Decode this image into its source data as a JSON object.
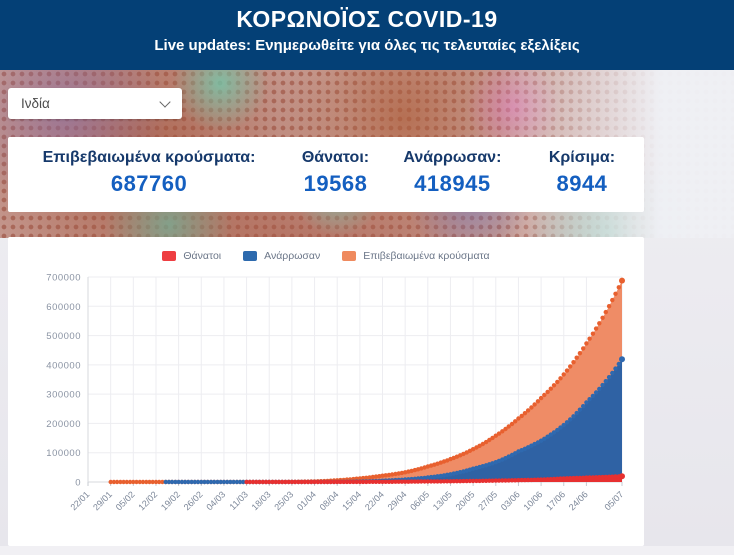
{
  "header": {
    "title": "ΚΟΡΩΝΟΪΟΣ COVID-19",
    "subtitle": "Live updates: Ενημερωθείτε για όλες τις τελευταίες εξελίξεις"
  },
  "country_select": {
    "value": "Ινδία"
  },
  "stats": {
    "items": [
      {
        "label": "Επιβεβαιωμένα κρούσματα:",
        "value": "687760"
      },
      {
        "label": "Θάνατοι:",
        "value": "19568"
      },
      {
        "label": "Ανάρρωσαν:",
        "value": "418945"
      },
      {
        "label": "Κρίσιμα:",
        "value": "8944"
      }
    ]
  },
  "brand": {
    "header_bg": "#044076",
    "stat_value_blue": "#145fc0"
  },
  "chart_data": {
    "type": "area",
    "title": "",
    "xlabel": "",
    "ylabel": "",
    "ylim": [
      0,
      700000
    ],
    "y_ticks": [
      0,
      100000,
      200000,
      300000,
      400000,
      500000,
      600000,
      700000
    ],
    "grid": true,
    "legend_position": "top",
    "x_tick_labels": [
      "22/01",
      "29/01",
      "05/02",
      "12/02",
      "19/02",
      "26/02",
      "04/03",
      "11/03",
      "18/03",
      "25/03",
      "01/04",
      "08/04",
      "15/04",
      "22/04",
      "29/04",
      "06/05",
      "13/05",
      "20/05",
      "27/05",
      "03/06",
      "10/06",
      "17/06",
      "24/06",
      "05/07"
    ],
    "series": [
      {
        "key": "deaths",
        "name": "Θάνατοι",
        "legend_color": "#ee3e42",
        "dot_color": "#e73030",
        "fill_color": "#e73030",
        "values": [
          0,
          0,
          0,
          0,
          0,
          0,
          0,
          1,
          3,
          12,
          58,
          178,
          422,
          681,
          1079,
          1785,
          2551,
          3434,
          4706,
          6088,
          8102,
          12237,
          14894,
          19568
        ]
      },
      {
        "key": "recovered",
        "name": "Ανάρρωσαν",
        "legend_color": "#2d6aae",
        "dot_color": "#2f69af",
        "fill_color": "#2f62a4",
        "values": [
          0,
          0,
          0,
          0,
          3,
          3,
          3,
          4,
          14,
          43,
          148,
          506,
          1508,
          4370,
          8437,
          15331,
          26400,
          45422,
          67749,
          104071,
          141029,
          194325,
          271697,
          418945
        ]
      },
      {
        "key": "confirmed",
        "name": "Επιβεβαιωμένα κρούσματα",
        "legend_color": "#ef8a5e",
        "dot_color": "#e8602f",
        "fill_color": "#ef8c66",
        "values": [
          0,
          1,
          3,
          3,
          3,
          3,
          28,
          62,
          151,
          657,
          1998,
          5916,
          12370,
          21370,
          33062,
          52987,
          78055,
          112028,
          158086,
          216824,
          286605,
          366946,
          473105,
          687760
        ]
      }
    ]
  }
}
